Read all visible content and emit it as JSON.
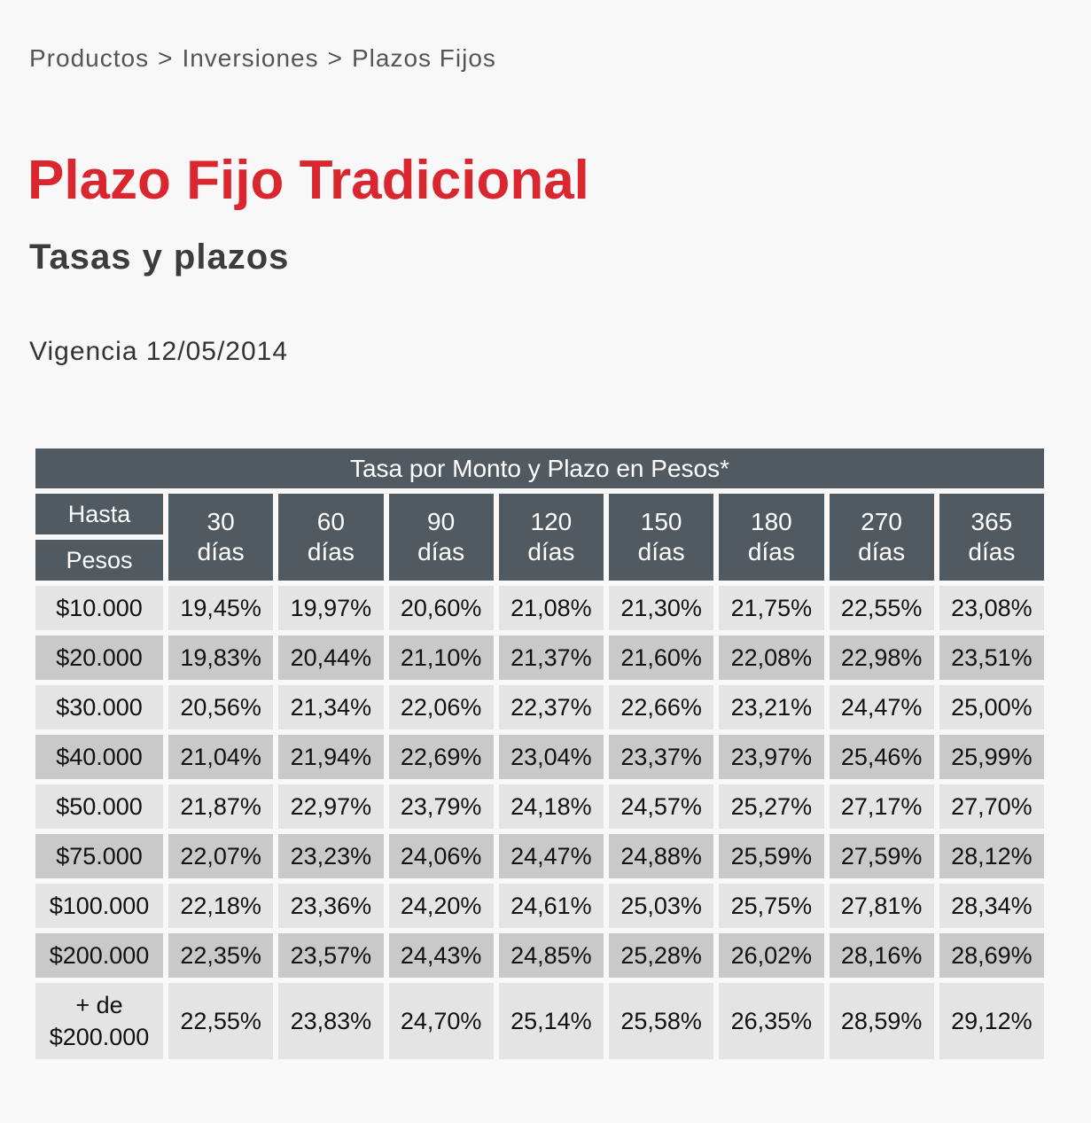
{
  "breadcrumb": {
    "items": [
      "Productos",
      "Inversiones",
      "Plazos Fijos"
    ],
    "separator": ">"
  },
  "title": "Plazo Fijo Tradicional",
  "subtitle": "Tasas y plazos",
  "vigencia": "Vigencia 12/05/2014",
  "colors": {
    "title": "#d9262f",
    "header_bg": "#525a61",
    "row_light": "#e4e4e4",
    "row_dark": "#c9c9c9"
  },
  "table": {
    "caption": "Tasa por Monto y Plazo en Pesos*",
    "row_header_top": "Hasta",
    "row_header_bottom": "Pesos",
    "columns": [
      {
        "num": "30",
        "unit": "días"
      },
      {
        "num": "60",
        "unit": "días"
      },
      {
        "num": "90",
        "unit": "días"
      },
      {
        "num": "120",
        "unit": "días"
      },
      {
        "num": "150",
        "unit": "días"
      },
      {
        "num": "180",
        "unit": "días"
      },
      {
        "num": "270",
        "unit": "días"
      },
      {
        "num": "365",
        "unit": "días"
      }
    ],
    "rows": [
      {
        "amount": "$10.000",
        "rates": [
          "19,45%",
          "19,97%",
          "20,60%",
          "21,08%",
          "21,30%",
          "21,75%",
          "22,55%",
          "23,08%"
        ]
      },
      {
        "amount": "$20.000",
        "rates": [
          "19,83%",
          "20,44%",
          "21,10%",
          "21,37%",
          "21,60%",
          "22,08%",
          "22,98%",
          "23,51%"
        ]
      },
      {
        "amount": "$30.000",
        "rates": [
          "20,56%",
          "21,34%",
          "22,06%",
          "22,37%",
          "22,66%",
          "23,21%",
          "24,47%",
          "25,00%"
        ]
      },
      {
        "amount": "$40.000",
        "rates": [
          "21,04%",
          "21,94%",
          "22,69%",
          "23,04%",
          "23,37%",
          "23,97%",
          "25,46%",
          "25,99%"
        ]
      },
      {
        "amount": "$50.000",
        "rates": [
          "21,87%",
          "22,97%",
          "23,79%",
          "24,18%",
          "24,57%",
          "25,27%",
          "27,17%",
          "27,70%"
        ]
      },
      {
        "amount": "$75.000",
        "rates": [
          "22,07%",
          "23,23%",
          "24,06%",
          "24,47%",
          "24,88%",
          "25,59%",
          "27,59%",
          "28,12%"
        ]
      },
      {
        "amount": "$100.000",
        "rates": [
          "22,18%",
          "23,36%",
          "24,20%",
          "24,61%",
          "25,03%",
          "25,75%",
          "27,81%",
          "28,34%"
        ]
      },
      {
        "amount": "$200.000",
        "rates": [
          "22,35%",
          "23,57%",
          "24,43%",
          "24,85%",
          "25,28%",
          "26,02%",
          "28,16%",
          "28,69%"
        ]
      }
    ],
    "last_row": {
      "amount_line1": "+ de",
      "amount_line2": "$200.000",
      "rates": [
        "22,55%",
        "23,83%",
        "24,70%",
        "25,14%",
        "25,58%",
        "26,35%",
        "28,59%",
        "29,12%"
      ]
    }
  }
}
